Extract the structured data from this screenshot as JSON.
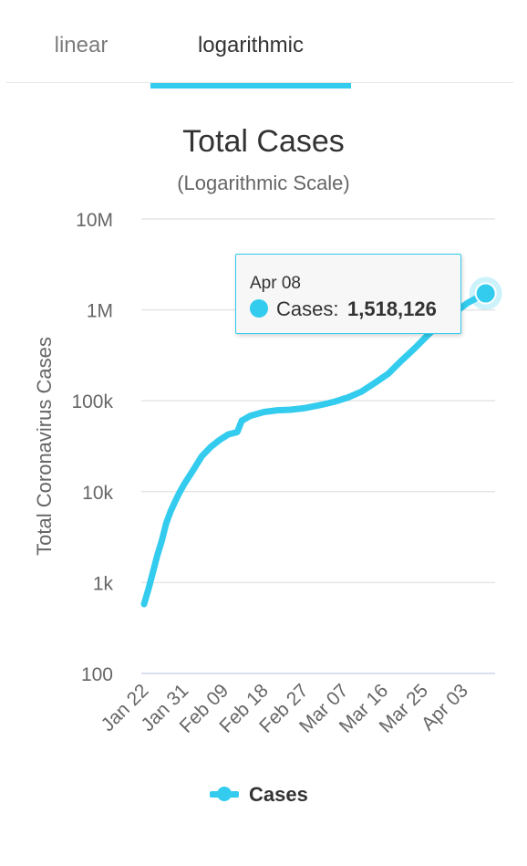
{
  "tabs": {
    "linear": "linear",
    "logarithmic": "logarithmic",
    "active": "logarithmic"
  },
  "colors": {
    "series": "#33ccee",
    "grid": "#e6e6e6",
    "text": "#333333"
  },
  "chart_data": {
    "type": "line",
    "title": "Total Cases",
    "subtitle": "(Logarithmic Scale)",
    "ylabel": "Total Coronavirus Cases",
    "yscale": "log",
    "ylim": [
      100,
      10000000
    ],
    "yticks": [
      {
        "value": 100,
        "label": "100"
      },
      {
        "value": 1000,
        "label": "1k"
      },
      {
        "value": 10000,
        "label": "10k"
      },
      {
        "value": 100000,
        "label": "100k"
      },
      {
        "value": 1000000,
        "label": "1M"
      },
      {
        "value": 10000000,
        "label": "10M"
      }
    ],
    "xticks": [
      "Jan 22",
      "Jan 31",
      "Feb 09",
      "Feb 18",
      "Feb 27",
      "Mar 07",
      "Mar 16",
      "Mar 25",
      "Apr 03"
    ],
    "grid": true,
    "legend": "bottom-center",
    "series": [
      {
        "name": "Cases",
        "points": [
          {
            "x": "Jan 22",
            "y": 580
          },
          {
            "x": "Jan 23",
            "y": 850
          },
          {
            "x": "Jan 24",
            "y": 1300
          },
          {
            "x": "Jan 25",
            "y": 2000
          },
          {
            "x": "Jan 26",
            "y": 2900
          },
          {
            "x": "Jan 27",
            "y": 4500
          },
          {
            "x": "Jan 28",
            "y": 6100
          },
          {
            "x": "Jan 29",
            "y": 7800
          },
          {
            "x": "Jan 30",
            "y": 9800
          },
          {
            "x": "Jan 31",
            "y": 12000
          },
          {
            "x": "Feb 02",
            "y": 17000
          },
          {
            "x": "Feb 04",
            "y": 24500
          },
          {
            "x": "Feb 06",
            "y": 31000
          },
          {
            "x": "Feb 08",
            "y": 37000
          },
          {
            "x": "Feb 10",
            "y": 42700
          },
          {
            "x": "Feb 12",
            "y": 45300
          },
          {
            "x": "Feb 13",
            "y": 60300
          },
          {
            "x": "Feb 15",
            "y": 68500
          },
          {
            "x": "Feb 18",
            "y": 75200
          },
          {
            "x": "Feb 21",
            "y": 78600
          },
          {
            "x": "Feb 24",
            "y": 79800
          },
          {
            "x": "Feb 27",
            "y": 82800
          },
          {
            "x": "Mar 02",
            "y": 90300
          },
          {
            "x": "Mar 05",
            "y": 97900
          },
          {
            "x": "Mar 08",
            "y": 109000
          },
          {
            "x": "Mar 11",
            "y": 126000
          },
          {
            "x": "Mar 14",
            "y": 157000
          },
          {
            "x": "Mar 17",
            "y": 198000
          },
          {
            "x": "Mar 20",
            "y": 276000
          },
          {
            "x": "Mar 23",
            "y": 378000
          },
          {
            "x": "Mar 26",
            "y": 531000
          },
          {
            "x": "Mar 29",
            "y": 721000
          },
          {
            "x": "Apr 01",
            "y": 932000
          },
          {
            "x": "Apr 04",
            "y": 1200000
          },
          {
            "x": "Apr 08",
            "y": 1518126
          }
        ]
      }
    ],
    "tooltip": {
      "date": "Apr 08",
      "label": "Cases:",
      "value": "1,518,126"
    }
  },
  "legend": {
    "label": "Cases"
  }
}
